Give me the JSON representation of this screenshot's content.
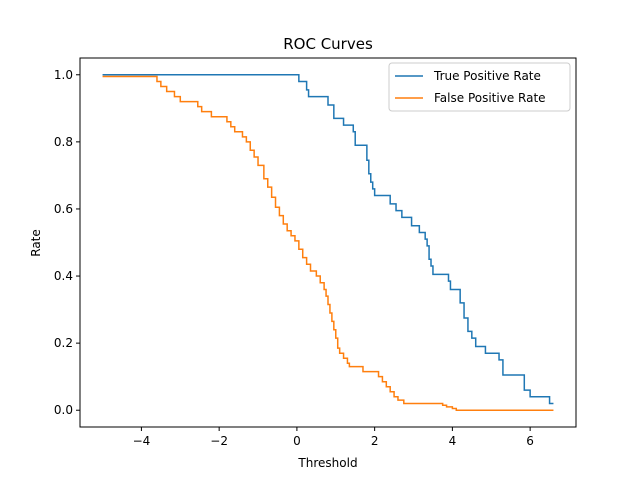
{
  "chart_data": {
    "type": "line",
    "title": "ROC Curves",
    "xlabel": "Threshold",
    "ylabel": "Rate",
    "xlim": [
      -5.58,
      7.18
    ],
    "ylim": [
      -0.05,
      1.05
    ],
    "xticks": [
      -4,
      -2,
      0,
      2,
      4,
      6
    ],
    "xtick_labels": [
      "−4",
      "−2",
      "0",
      "2",
      "4",
      "6"
    ],
    "yticks": [
      0.0,
      0.2,
      0.4,
      0.6,
      0.8,
      1.0
    ],
    "ytick_labels": [
      "0.0",
      "0.2",
      "0.4",
      "0.6",
      "0.8",
      "1.0"
    ],
    "grid": false,
    "legend_position": "upper right",
    "series": [
      {
        "name": "True Positive Rate",
        "color": "#1f77b4",
        "step": true,
        "points": [
          [
            -5.0,
            1.0
          ],
          [
            0.05,
            1.0
          ],
          [
            0.05,
            0.98
          ],
          [
            0.25,
            0.98
          ],
          [
            0.25,
            0.955
          ],
          [
            0.3,
            0.955
          ],
          [
            0.3,
            0.935
          ],
          [
            0.8,
            0.935
          ],
          [
            0.8,
            0.91
          ],
          [
            0.95,
            0.91
          ],
          [
            0.95,
            0.87
          ],
          [
            1.2,
            0.87
          ],
          [
            1.2,
            0.85
          ],
          [
            1.45,
            0.85
          ],
          [
            1.45,
            0.83
          ],
          [
            1.5,
            0.83
          ],
          [
            1.5,
            0.79
          ],
          [
            1.8,
            0.79
          ],
          [
            1.8,
            0.745
          ],
          [
            1.85,
            0.745
          ],
          [
            1.85,
            0.705
          ],
          [
            1.9,
            0.705
          ],
          [
            1.9,
            0.68
          ],
          [
            1.95,
            0.68
          ],
          [
            1.95,
            0.66
          ],
          [
            2.0,
            0.66
          ],
          [
            2.0,
            0.64
          ],
          [
            2.4,
            0.64
          ],
          [
            2.4,
            0.615
          ],
          [
            2.55,
            0.615
          ],
          [
            2.55,
            0.595
          ],
          [
            2.7,
            0.595
          ],
          [
            2.7,
            0.575
          ],
          [
            2.95,
            0.575
          ],
          [
            2.95,
            0.55
          ],
          [
            3.15,
            0.55
          ],
          [
            3.15,
            0.53
          ],
          [
            3.3,
            0.53
          ],
          [
            3.3,
            0.51
          ],
          [
            3.35,
            0.51
          ],
          [
            3.35,
            0.49
          ],
          [
            3.4,
            0.49
          ],
          [
            3.4,
            0.45
          ],
          [
            3.45,
            0.45
          ],
          [
            3.45,
            0.43
          ],
          [
            3.5,
            0.43
          ],
          [
            3.5,
            0.405
          ],
          [
            3.9,
            0.405
          ],
          [
            3.9,
            0.385
          ],
          [
            3.95,
            0.385
          ],
          [
            3.95,
            0.36
          ],
          [
            4.2,
            0.36
          ],
          [
            4.2,
            0.32
          ],
          [
            4.3,
            0.32
          ],
          [
            4.3,
            0.275
          ],
          [
            4.4,
            0.275
          ],
          [
            4.4,
            0.235
          ],
          [
            4.5,
            0.235
          ],
          [
            4.5,
            0.215
          ],
          [
            4.6,
            0.215
          ],
          [
            4.6,
            0.19
          ],
          [
            4.85,
            0.19
          ],
          [
            4.85,
            0.17
          ],
          [
            5.2,
            0.17
          ],
          [
            5.2,
            0.15
          ],
          [
            5.3,
            0.15
          ],
          [
            5.3,
            0.105
          ],
          [
            5.85,
            0.105
          ],
          [
            5.85,
            0.06
          ],
          [
            6.0,
            0.06
          ],
          [
            6.0,
            0.04
          ],
          [
            6.5,
            0.04
          ],
          [
            6.5,
            0.02
          ],
          [
            6.6,
            0.02
          ]
        ]
      },
      {
        "name": "False Positive Rate",
        "color": "#ff7f0e",
        "step": true,
        "points": [
          [
            -5.0,
            0.995
          ],
          [
            -3.6,
            0.995
          ],
          [
            -3.6,
            0.98
          ],
          [
            -3.5,
            0.98
          ],
          [
            -3.5,
            0.965
          ],
          [
            -3.35,
            0.965
          ],
          [
            -3.35,
            0.95
          ],
          [
            -3.15,
            0.95
          ],
          [
            -3.15,
            0.935
          ],
          [
            -3.0,
            0.935
          ],
          [
            -3.0,
            0.92
          ],
          [
            -2.55,
            0.92
          ],
          [
            -2.55,
            0.905
          ],
          [
            -2.45,
            0.905
          ],
          [
            -2.45,
            0.89
          ],
          [
            -2.2,
            0.89
          ],
          [
            -2.2,
            0.875
          ],
          [
            -1.8,
            0.875
          ],
          [
            -1.8,
            0.86
          ],
          [
            -1.7,
            0.86
          ],
          [
            -1.7,
            0.845
          ],
          [
            -1.6,
            0.845
          ],
          [
            -1.6,
            0.83
          ],
          [
            -1.4,
            0.83
          ],
          [
            -1.4,
            0.815
          ],
          [
            -1.3,
            0.815
          ],
          [
            -1.3,
            0.8
          ],
          [
            -1.2,
            0.8
          ],
          [
            -1.2,
            0.775
          ],
          [
            -1.1,
            0.775
          ],
          [
            -1.1,
            0.755
          ],
          [
            -1.0,
            0.755
          ],
          [
            -1.0,
            0.73
          ],
          [
            -0.85,
            0.73
          ],
          [
            -0.85,
            0.69
          ],
          [
            -0.75,
            0.69
          ],
          [
            -0.75,
            0.665
          ],
          [
            -0.65,
            0.665
          ],
          [
            -0.65,
            0.635
          ],
          [
            -0.55,
            0.635
          ],
          [
            -0.55,
            0.605
          ],
          [
            -0.45,
            0.605
          ],
          [
            -0.45,
            0.58
          ],
          [
            -0.35,
            0.58
          ],
          [
            -0.35,
            0.555
          ],
          [
            -0.25,
            0.555
          ],
          [
            -0.25,
            0.535
          ],
          [
            -0.15,
            0.535
          ],
          [
            -0.15,
            0.52
          ],
          [
            -0.05,
            0.52
          ],
          [
            -0.05,
            0.505
          ],
          [
            0.05,
            0.505
          ],
          [
            0.05,
            0.48
          ],
          [
            0.15,
            0.48
          ],
          [
            0.15,
            0.455
          ],
          [
            0.25,
            0.455
          ],
          [
            0.25,
            0.435
          ],
          [
            0.35,
            0.435
          ],
          [
            0.35,
            0.415
          ],
          [
            0.5,
            0.415
          ],
          [
            0.5,
            0.4
          ],
          [
            0.6,
            0.4
          ],
          [
            0.6,
            0.38
          ],
          [
            0.7,
            0.38
          ],
          [
            0.7,
            0.36
          ],
          [
            0.75,
            0.36
          ],
          [
            0.75,
            0.34
          ],
          [
            0.8,
            0.34
          ],
          [
            0.8,
            0.315
          ],
          [
            0.85,
            0.315
          ],
          [
            0.85,
            0.29
          ],
          [
            0.9,
            0.29
          ],
          [
            0.9,
            0.265
          ],
          [
            0.95,
            0.265
          ],
          [
            0.95,
            0.24
          ],
          [
            1.0,
            0.24
          ],
          [
            1.0,
            0.215
          ],
          [
            1.05,
            0.215
          ],
          [
            1.05,
            0.185
          ],
          [
            1.1,
            0.185
          ],
          [
            1.1,
            0.17
          ],
          [
            1.2,
            0.17
          ],
          [
            1.2,
            0.155
          ],
          [
            1.3,
            0.155
          ],
          [
            1.3,
            0.14
          ],
          [
            1.35,
            0.14
          ],
          [
            1.35,
            0.13
          ],
          [
            1.7,
            0.13
          ],
          [
            1.7,
            0.115
          ],
          [
            2.1,
            0.115
          ],
          [
            2.1,
            0.1
          ],
          [
            2.2,
            0.1
          ],
          [
            2.2,
            0.085
          ],
          [
            2.3,
            0.085
          ],
          [
            2.3,
            0.07
          ],
          [
            2.4,
            0.07
          ],
          [
            2.4,
            0.055
          ],
          [
            2.5,
            0.055
          ],
          [
            2.5,
            0.04
          ],
          [
            2.6,
            0.04
          ],
          [
            2.6,
            0.03
          ],
          [
            2.75,
            0.03
          ],
          [
            2.75,
            0.02
          ],
          [
            3.75,
            0.02
          ],
          [
            3.75,
            0.015
          ],
          [
            3.85,
            0.015
          ],
          [
            3.85,
            0.01
          ],
          [
            4.0,
            0.01
          ],
          [
            4.0,
            0.005
          ],
          [
            4.1,
            0.005
          ],
          [
            4.1,
            0.0
          ],
          [
            6.6,
            0.0
          ]
        ]
      }
    ]
  }
}
